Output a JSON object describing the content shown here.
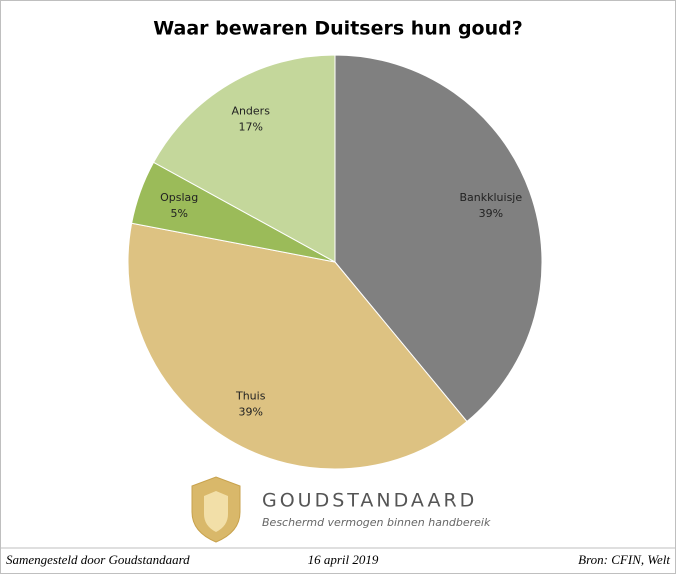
{
  "chart_data": {
    "type": "pie",
    "title": "Waar bewaren Duitsers hun goud?",
    "categories": [
      "Bankkluisje",
      "Thuis",
      "Opslag",
      "Anders"
    ],
    "values": [
      39,
      39,
      5,
      17
    ],
    "value_labels": [
      "39%",
      "39%",
      "5%",
      "17%"
    ],
    "colors": [
      "#808080",
      "#ddc282",
      "#9bbb59",
      "#c4d79b"
    ],
    "logo": {
      "name": "GOUDSTANDAARD",
      "tagline": "Beschermd vermogen binnen handbereik"
    },
    "footer": {
      "left": "Samengesteld door Goudstandaard",
      "center": "16 april 2019",
      "right": "Bron: CFIN, Welt"
    }
  }
}
